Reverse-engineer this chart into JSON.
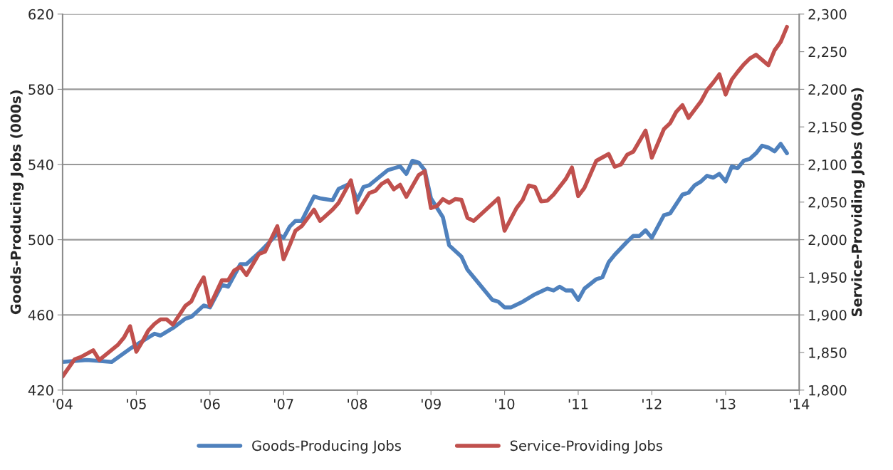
{
  "chart_data": {
    "type": "line",
    "ylabel": "Goods-Producing Jobs (000s)",
    "y2label": "Service-Providing Jobs (000s)",
    "xlim": [
      "2004-01-01",
      "2014-01-01"
    ],
    "xticks": [
      {
        "value": "2004-01-01",
        "label": "'04"
      },
      {
        "value": "2005-01-01",
        "label": "'05"
      },
      {
        "value": "2006-01-01",
        "label": "'06"
      },
      {
        "value": "2007-01-01",
        "label": "'07"
      },
      {
        "value": "2008-01-01",
        "label": "'08"
      },
      {
        "value": "2009-01-01",
        "label": "'09"
      },
      {
        "value": "2010-01-01",
        "label": "'10"
      },
      {
        "value": "2011-01-01",
        "label": "'11"
      },
      {
        "value": "2012-01-01",
        "label": "'12"
      },
      {
        "value": "2013-01-01",
        "label": "'13"
      },
      {
        "value": "2014-01-01",
        "label": "'14"
      }
    ],
    "ylim": [
      420,
      620
    ],
    "yticks": [
      420,
      460,
      500,
      540,
      580,
      620
    ],
    "y2lim": [
      1800,
      2300
    ],
    "y2ticks": [
      {
        "value": 1800,
        "label": "1,800"
      },
      {
        "value": 1850,
        "label": "1,850"
      },
      {
        "value": 1900,
        "label": "1,900"
      },
      {
        "value": 1950,
        "label": "1,950"
      },
      {
        "value": 2000,
        "label": "2,000"
      },
      {
        "value": 2050,
        "label": "2,050"
      },
      {
        "value": 2100,
        "label": "2,100"
      },
      {
        "value": 2150,
        "label": "2,150"
      },
      {
        "value": 2200,
        "label": "2,200"
      },
      {
        "value": 2250,
        "label": "2,250"
      },
      {
        "value": 2300,
        "label": "2,300"
      }
    ],
    "grid": "y",
    "legend": "bottom",
    "marker": "none",
    "line_style": "solid",
    "series": [
      {
        "name": "Goods-Producing Jobs",
        "color": "#4f81bd",
        "axis": "y",
        "x": [
          "2004-01",
          "2004-05",
          "2004-09",
          "2004-12",
          "2005-04",
          "2005-05",
          "2005-07",
          "2005-09",
          "2005-10",
          "2005-12",
          "2006-01",
          "2006-03",
          "2006-04",
          "2006-06",
          "2006-07",
          "2006-09",
          "2006-12",
          "2007-01",
          "2007-02",
          "2007-03",
          "2007-04",
          "2007-06",
          "2007-07",
          "2007-09",
          "2007-10",
          "2007-12",
          "2008-01",
          "2008-02",
          "2008-03",
          "2008-06",
          "2008-07",
          "2008-08",
          "2008-09",
          "2008-10",
          "2008-11",
          "2008-12",
          "2009-01",
          "2009-03",
          "2009-04",
          "2009-06",
          "2009-07",
          "2009-08",
          "2009-11",
          "2009-12",
          "2010-01",
          "2010-02",
          "2010-04",
          "2010-06",
          "2010-08",
          "2010-09",
          "2010-10",
          "2010-11",
          "2010-12",
          "2011-01",
          "2011-02",
          "2011-04",
          "2011-05",
          "2011-06",
          "2011-07",
          "2011-09",
          "2011-10",
          "2011-11",
          "2011-12",
          "2012-01",
          "2012-03",
          "2012-04",
          "2012-06",
          "2012-07",
          "2012-08",
          "2012-09",
          "2012-10",
          "2012-11",
          "2012-12",
          "2013-01",
          "2013-02",
          "2013-03",
          "2013-04",
          "2013-05",
          "2013-06",
          "2013-07",
          "2013-08",
          "2013-09",
          "2013-10",
          "2013-11"
        ],
        "values": [
          435,
          436,
          435,
          442,
          450,
          449,
          453,
          458,
          459,
          465,
          464,
          476,
          475,
          487,
          487,
          493,
          503,
          501,
          507,
          510,
          510,
          523,
          522,
          521,
          527,
          530,
          521,
          528,
          529,
          537,
          538,
          539,
          535,
          542,
          541,
          537,
          522,
          512,
          497,
          491,
          484,
          480,
          468,
          467,
          464,
          464,
          467,
          471,
          474,
          473,
          475,
          473,
          473,
          468,
          474,
          479,
          480,
          488,
          492,
          499,
          502,
          502,
          505,
          501,
          513,
          514,
          524,
          525,
          529,
          531,
          534,
          533,
          535,
          531,
          539,
          538,
          542,
          543,
          546,
          550,
          549,
          547,
          551,
          546
        ]
      },
      {
        "name": "Service-Providing Jobs",
        "color": "#c0504d",
        "axis": "y2",
        "x": [
          "2004-01",
          "2004-03",
          "2004-04",
          "2004-06",
          "2004-07",
          "2004-10",
          "2004-11",
          "2004-12",
          "2005-01",
          "2005-02",
          "2005-03",
          "2005-04",
          "2005-05",
          "2005-06",
          "2005-07",
          "2005-09",
          "2005-10",
          "2005-11",
          "2005-12",
          "2006-01",
          "2006-03",
          "2006-04",
          "2006-05",
          "2006-06",
          "2006-07",
          "2006-09",
          "2006-10",
          "2006-12",
          "2007-01",
          "2007-02",
          "2007-03",
          "2007-04",
          "2007-06",
          "2007-07",
          "2007-09",
          "2007-10",
          "2007-12",
          "2008-01",
          "2008-03",
          "2008-04",
          "2008-05",
          "2008-06",
          "2008-07",
          "2008-08",
          "2008-09",
          "2008-11",
          "2008-12",
          "2009-01",
          "2009-02",
          "2009-03",
          "2009-04",
          "2009-05",
          "2009-06",
          "2009-07",
          "2009-08",
          "2009-12",
          "2010-01",
          "2010-03",
          "2010-04",
          "2010-05",
          "2010-06",
          "2010-07",
          "2010-08",
          "2010-09",
          "2010-11",
          "2010-12",
          "2011-01",
          "2011-02",
          "2011-04",
          "2011-06",
          "2011-07",
          "2011-08",
          "2011-09",
          "2011-10",
          "2011-12",
          "2012-01",
          "2012-03",
          "2012-04",
          "2012-05",
          "2012-06",
          "2012-07",
          "2012-08",
          "2012-09",
          "2012-10",
          "2012-11",
          "2012-12",
          "2013-01",
          "2013-02",
          "2013-03",
          "2013-04",
          "2013-05",
          "2013-06",
          "2013-07",
          "2013-08",
          "2013-09",
          "2013-10",
          "2013-11"
        ],
        "values": [
          1818,
          1841,
          1844,
          1853,
          1840,
          1860,
          1870,
          1885,
          1851,
          1865,
          1879,
          1888,
          1894,
          1894,
          1887,
          1912,
          1918,
          1936,
          1950,
          1912,
          1946,
          1946,
          1959,
          1964,
          1953,
          1981,
          1984,
          2018,
          1974,
          1993,
          2012,
          2018,
          2040,
          2025,
          2040,
          2049,
          2079,
          2036,
          2062,
          2065,
          2074,
          2079,
          2067,
          2073,
          2057,
          2086,
          2091,
          2042,
          2045,
          2054,
          2049,
          2054,
          2053,
          2029,
          2025,
          2055,
          2012,
          2042,
          2053,
          2072,
          2070,
          2051,
          2052,
          2060,
          2081,
          2096,
          2058,
          2069,
          2105,
          2114,
          2097,
          2100,
          2113,
          2117,
          2145,
          2109,
          2147,
          2155,
          2170,
          2179,
          2162,
          2173,
          2184,
          2199,
          2209,
          2220,
          2193,
          2213,
          2223,
          2233,
          2241,
          2246,
          2239,
          2232,
          2252,
          2263,
          2283
        ]
      }
    ]
  }
}
